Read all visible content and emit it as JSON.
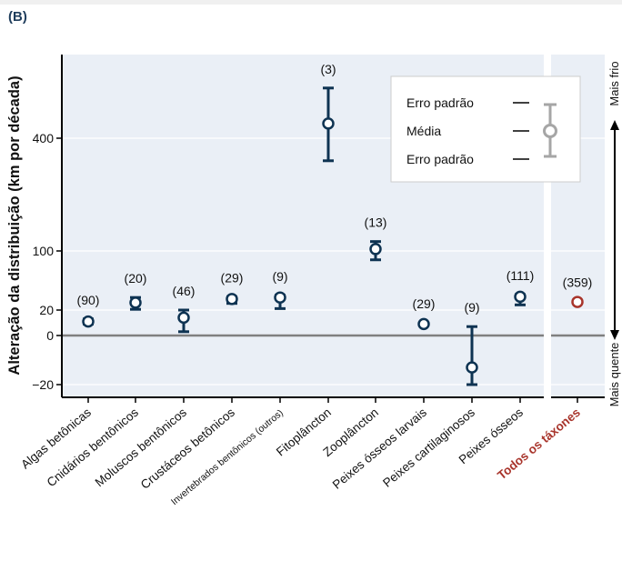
{
  "panel_label": "(B)",
  "colors": {
    "plot_bg": "#eaeff6",
    "marker": "#0e3352",
    "highlight": "#a8342b",
    "zero_line": "#808080",
    "grid": "#ffffff",
    "legend_marker": "#a6a6a6"
  },
  "chart_data": {
    "type": "scatter",
    "ylabel": "Alteração da distribuição (km por década)",
    "y_scale": "nonlinear",
    "y_ticks": [
      -20,
      0,
      20,
      100,
      400
    ],
    "y_tick_labels": [
      "−20",
      "0",
      "20",
      "100",
      "400"
    ],
    "grid": true,
    "categories": [
      "Algas betônicas",
      "Cnidários bentônicos",
      "Moluscos bentônicos",
      "Crustáceos betônicos",
      "Invertebrados bentônicos (outros)",
      "Fitoplâncton",
      "Zooplâncton",
      "Peixes ósseos larvais",
      "Peixes cartilaginosos",
      "Peixes ósseos",
      "Todos os táxones"
    ],
    "highlight_category": "Todos os táxones",
    "counts": [
      "(90)",
      "(20)",
      "(46)",
      "(29)",
      "(9)",
      "(3)",
      "(13)",
      "(29)",
      "(9)",
      "(111)",
      "(359)"
    ],
    "series": [
      {
        "means": [
          11,
          30,
          14,
          35,
          37,
          470,
          105,
          9,
          -13,
          38,
          31
        ],
        "lower": [
          9,
          21,
          3,
          29,
          22,
          340,
          88,
          8,
          -20,
          27,
          30
        ],
        "upper": [
          13,
          37,
          20,
          38,
          40,
          640,
          125,
          10,
          7,
          41,
          32
        ]
      }
    ],
    "legend": {
      "position": "top-right",
      "items": [
        "Erro padrão",
        "Média",
        "Erro padrão"
      ]
    },
    "right_axis": {
      "top_label": "Mais frio",
      "bottom_label": "Mais quente"
    }
  }
}
